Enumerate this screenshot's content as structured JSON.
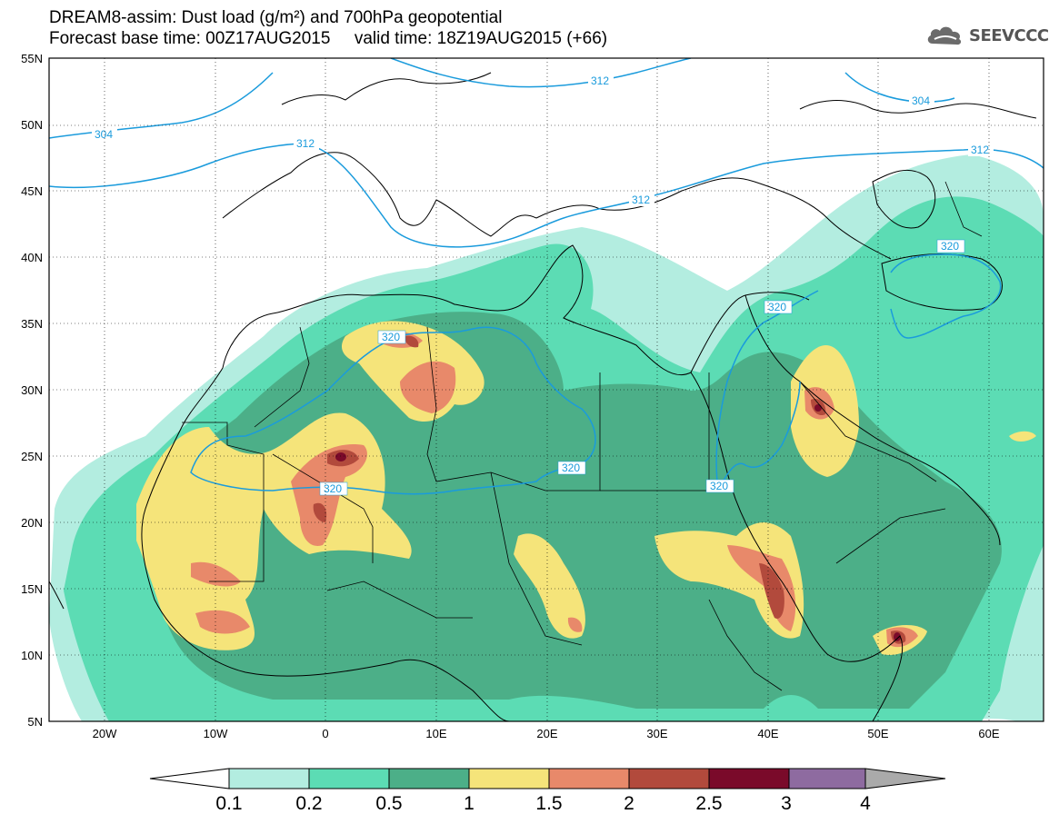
{
  "header": {
    "title_line1": "DREAM8-assim: Dust load (g/m²) and 700hPa geopotential",
    "title_line2": "Forecast base time: 00Z17AUG2015     valid time: 18Z19AUG2015 (+66)",
    "logo_text": "SEEVCCC",
    "logo_icon": "cloud-icon"
  },
  "map": {
    "lat_labels": [
      "55N",
      "50N",
      "45N",
      "40N",
      "35N",
      "30N",
      "25N",
      "20N",
      "15N",
      "10N",
      "5N"
    ],
    "lon_labels": [
      "20W",
      "10W",
      "0",
      "10E",
      "20E",
      "30E",
      "40E",
      "50E",
      "60E"
    ],
    "contour_labels": [
      "304",
      "312",
      "312",
      "312",
      "304",
      "312",
      "320",
      "320",
      "320",
      "320",
      "320",
      "320"
    ]
  },
  "colorbar": {
    "labels": [
      "0.1",
      "0.2",
      "0.5",
      "1",
      "1.5",
      "2",
      "2.5",
      "3",
      "4"
    ],
    "colors": [
      "#ffffff",
      "#b3ede0",
      "#5cdcb4",
      "#4caf88",
      "#f5e47a",
      "#e8896a",
      "#b24a3c",
      "#7a0a2a",
      "#8e6ba0",
      "#aaaaaa"
    ]
  },
  "colors": {
    "contour": "#1a9bdc",
    "coast": "#000000",
    "dust_0_1": "#b3ede0",
    "dust_0_2": "#5cdcb4",
    "dust_0_5": "#4caf88",
    "dust_1": "#f5e47a",
    "dust_1_5": "#e8896a",
    "dust_2": "#b24a3c",
    "dust_2_5": "#7a0a2a"
  }
}
